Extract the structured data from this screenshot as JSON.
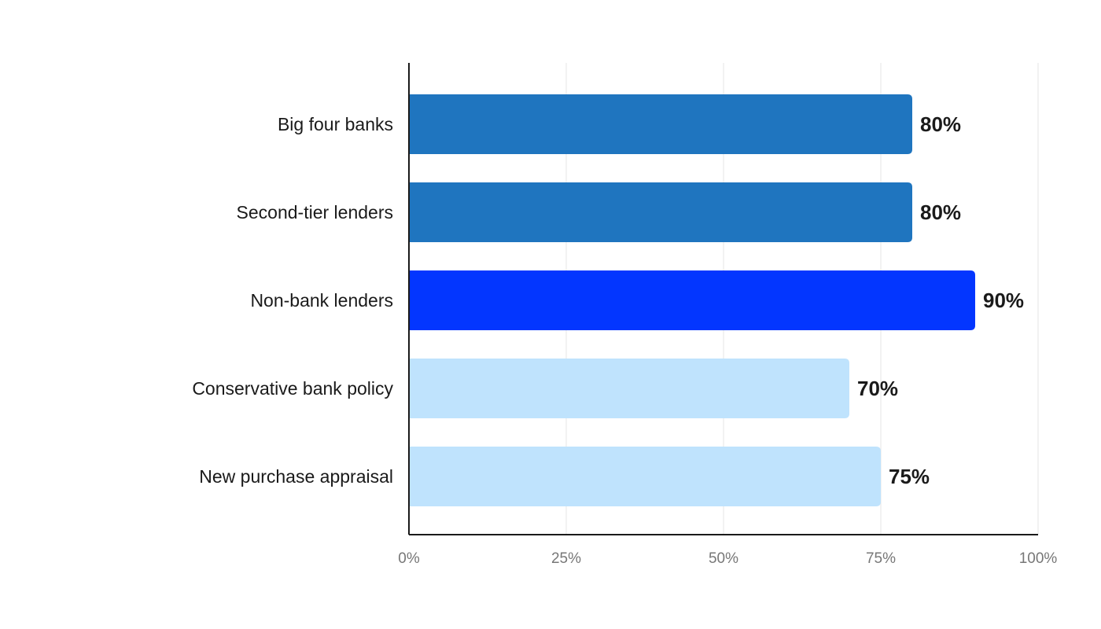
{
  "chart_data": {
    "type": "bar",
    "orientation": "horizontal",
    "categories": [
      "Big four banks",
      "Second-tier lenders",
      "Non-bank lenders",
      "Conservative bank policy",
      "New purchase appraisal"
    ],
    "values": [
      80,
      80,
      90,
      70,
      75
    ],
    "value_labels": [
      "80%",
      "80%",
      "90%",
      "70%",
      "75%"
    ],
    "bar_colors": [
      "#1f75bf",
      "#1f75bf",
      "#0336ff",
      "#bfe3fd",
      "#bfe3fd"
    ],
    "xlim": [
      0,
      100
    ],
    "x_ticks": [
      0,
      25,
      50,
      75,
      100
    ],
    "x_tick_labels": [
      "0%",
      "25%",
      "50%",
      "75%",
      "100%"
    ],
    "grid": true,
    "legend": "none"
  }
}
